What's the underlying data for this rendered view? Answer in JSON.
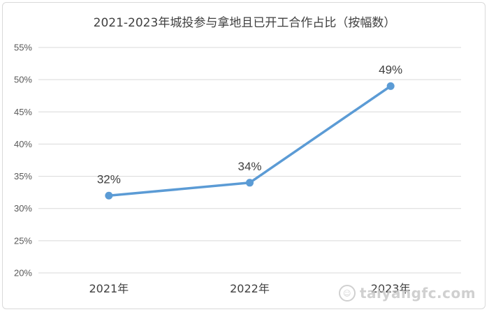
{
  "chart_data": {
    "type": "line",
    "title": "2021-2023年城投参与拿地且已开工合作占比（按幅数）",
    "categories": [
      "2021年",
      "2022年",
      "2023年"
    ],
    "series": [
      {
        "values": [
          32,
          34,
          49
        ],
        "color": "#5b9bd5"
      }
    ],
    "data_labels": [
      "32%",
      "34%",
      "49%"
    ],
    "ylim": [
      20,
      55
    ],
    "yticks": [
      "20%",
      "25%",
      "30%",
      "35%",
      "40%",
      "45%",
      "50%",
      "55%"
    ],
    "grid": true,
    "legend": "none"
  },
  "watermark": {
    "text": "taiyangfc.com",
    "icon": "sun-smile-icon"
  }
}
